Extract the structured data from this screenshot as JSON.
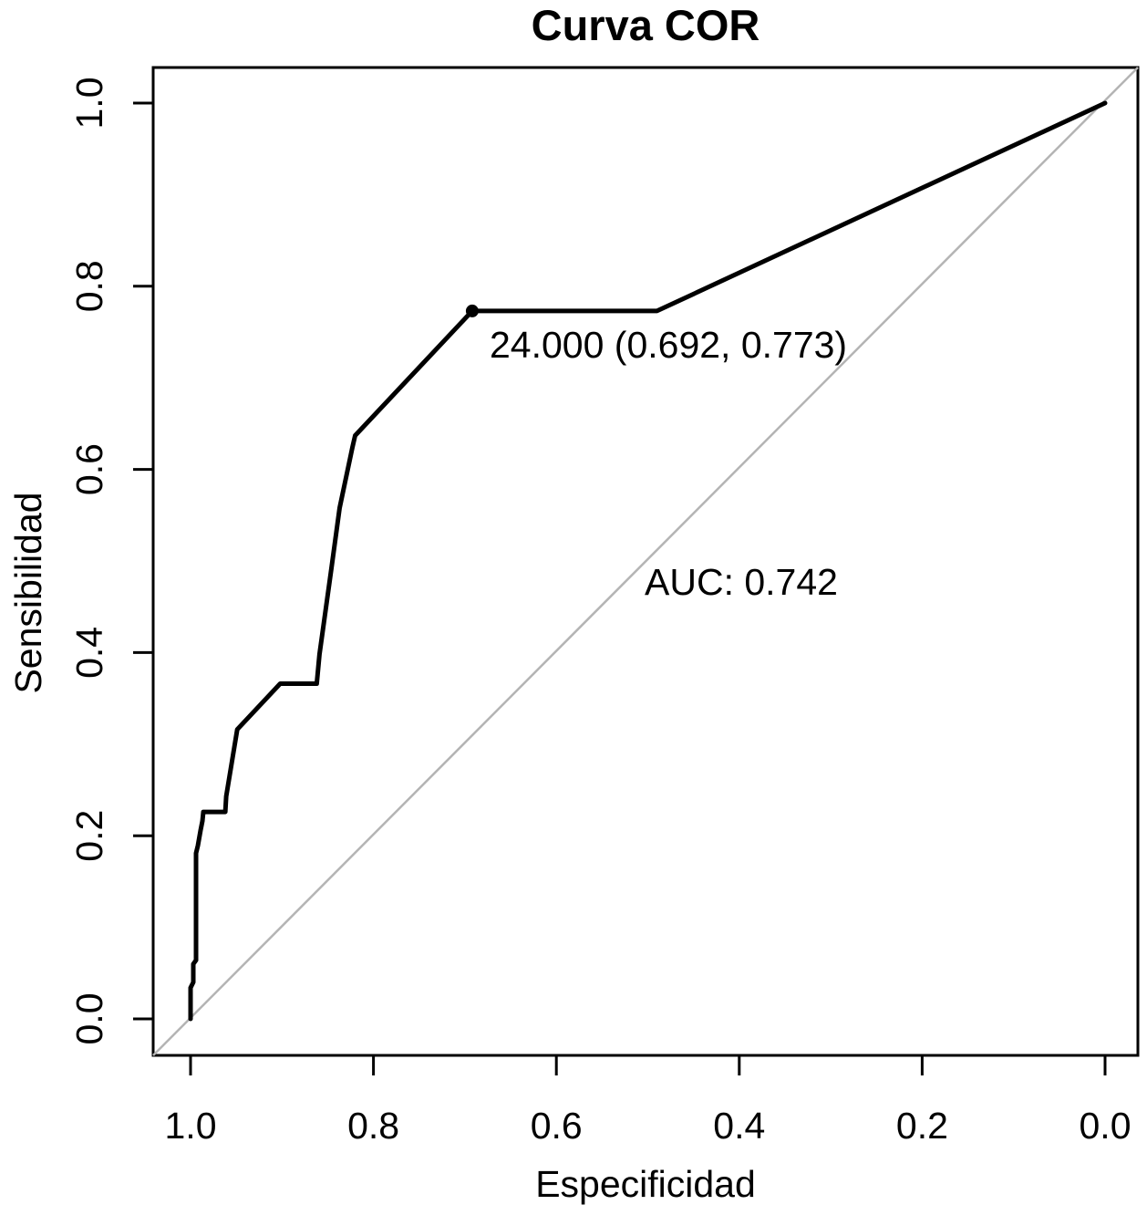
{
  "page": {
    "background": "#ffffff"
  },
  "chart_data": {
    "type": "line",
    "title": "Curva COR",
    "xlabel": "Especificidad",
    "ylabel": "Sensibilidad",
    "x_axis": {
      "ticks": [
        1.0,
        0.8,
        0.6,
        0.4,
        0.2,
        0.0
      ],
      "range": [
        0,
        1
      ],
      "reversed": true
    },
    "y_axis": {
      "ticks": [
        0.0,
        0.2,
        0.4,
        0.6,
        0.8,
        1.0
      ],
      "range": [
        0,
        1
      ]
    },
    "grid": false,
    "colors": {
      "curve": "#000000",
      "reference_line": "#b4b4b4",
      "axis": "#000000",
      "text": "#000000"
    },
    "series": [
      {
        "name": "ROC curve",
        "color": "#000000",
        "points": [
          [
            1.0,
            0.0
          ],
          [
            1.0,
            0.034
          ],
          [
            0.997,
            0.04
          ],
          [
            0.997,
            0.06
          ],
          [
            0.994,
            0.064
          ],
          [
            0.994,
            0.181
          ],
          [
            0.992,
            0.189
          ],
          [
            0.989,
            0.206
          ],
          [
            0.987,
            0.216
          ],
          [
            0.986,
            0.226
          ],
          [
            0.962,
            0.226
          ],
          [
            0.961,
            0.243
          ],
          [
            0.949,
            0.316
          ],
          [
            0.902,
            0.366
          ],
          [
            0.862,
            0.366
          ],
          [
            0.859,
            0.398
          ],
          [
            0.846,
            0.492
          ],
          [
            0.837,
            0.558
          ],
          [
            0.823,
            0.624
          ],
          [
            0.82,
            0.637
          ],
          [
            0.692,
            0.773
          ],
          [
            0.49,
            0.773
          ],
          [
            0.0,
            1.0
          ]
        ]
      }
    ],
    "reference_line": {
      "from": [
        1.0,
        0.0
      ],
      "to": [
        0.0,
        1.0
      ]
    },
    "marked_point": {
      "threshold": "24.000",
      "specificity": 0.692,
      "sensitivity": 0.773,
      "label": "24.000 (0.692, 0.773)"
    },
    "auc": 0.742,
    "annotations": [
      {
        "id": "threshold",
        "text": "24.000 (0.692, 0.773)"
      },
      {
        "id": "auc",
        "text": "AUC: 0.742"
      }
    ]
  }
}
